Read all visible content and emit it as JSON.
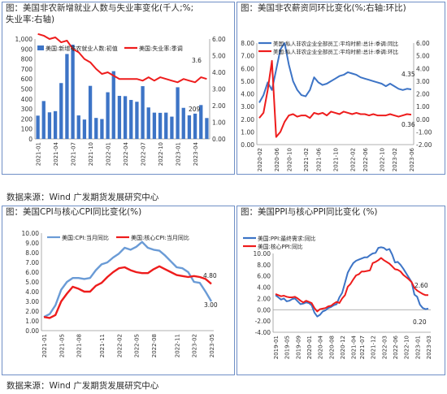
{
  "titles": {
    "p1_line1": "图：美国非农新增就业人数与失业率变化(千人;%;",
    "p1_line2": "失业率:右轴)",
    "p2": "图：美国非农薪资同环比变化(%;右轴:环比)",
    "p3": "图：美国CPI与核心CPI同比变化(%)",
    "p4": "图：美国PPI与核心PPI同比变化 (%)"
  },
  "sources": {
    "top": "数据来源：Wind 广发期货发展研究中心",
    "bottom": "数据来源：Wind 广发期货发展研究中心"
  },
  "colors": {
    "blue": "#3d74c6",
    "red": "#ee1c1c",
    "light_blue": "#6a9bd6"
  },
  "chart_data": [
    {
      "type": "bar",
      "legend_position": "top",
      "series": [
        {
          "name": "美国:新增非农就业人数:初值",
          "type": "bar",
          "values": [
            233,
            379,
            266,
            278,
            559,
            850,
            943,
            235,
            194,
            531,
            210,
            199,
            467,
            678,
            431,
            428,
            390,
            372,
            528,
            315,
            263,
            261,
            263,
            223,
            517,
            311,
            236,
            253,
            339,
            209
          ]
        },
        {
          "name": "美国:失业率:季调",
          "type": "line",
          "axis": "right",
          "values": [
            6.3,
            6.2,
            6.0,
            6.1,
            5.8,
            5.9,
            5.4,
            5.2,
            4.8,
            4.6,
            4.2,
            3.9,
            4.0,
            3.8,
            3.6,
            3.6,
            3.6,
            3.6,
            3.5,
            3.7,
            3.5,
            3.7,
            3.6,
            3.5,
            3.4,
            3.6,
            3.5,
            3.4,
            3.7,
            3.6
          ]
        }
      ],
      "x_ticks": [
        "2021-01",
        "2021-04",
        "2021-07",
        "2021-10",
        "2022-01",
        "2022-04",
        "2022-07",
        "2022-10",
        "2023-01",
        "2023-04"
      ],
      "annotations": [
        "3.6",
        "209"
      ],
      "ylim_left": [
        0,
        1000
      ],
      "yticks_left": [
        "0",
        "100",
        "200",
        "300",
        "400",
        "500",
        "600",
        "700",
        "800",
        "900",
        "1,000"
      ],
      "ylim_right": [
        0,
        6
      ],
      "yticks_right": [
        "0.00",
        "1.00",
        "2.00",
        "3.00",
        "4.00",
        "5.00",
        "6.00"
      ]
    },
    {
      "type": "line",
      "legend_position": "top",
      "series": [
        {
          "name": "美国:私人非农企业全部员工:平均时薪:总计:季调:同比",
          "values": [
            3.3,
            3.9,
            4.9,
            4.3,
            5.9,
            7.5,
            8.0,
            6.3,
            5.0,
            4.3,
            3.9,
            3.8,
            4.3,
            5.3,
            4.9,
            4.7,
            4.8,
            5.0,
            5.2,
            5.4,
            5.5,
            5.7,
            5.6,
            5.5,
            5.3,
            5.2,
            5.1,
            5.0,
            4.9,
            4.8,
            4.6,
            4.8,
            4.6,
            4.4,
            4.3,
            4.4,
            4.35
          ]
        },
        {
          "name": "美国:私人非农企业全部员工:平均时薪:总计:季调:环比",
          "axis": "right",
          "values": [
            0.1,
            0.5,
            2.3,
            4.6,
            -1.4,
            -1.0,
            -0.2,
            0.3,
            0.4,
            0.2,
            0.3,
            0.3,
            0.1,
            0.5,
            0.4,
            0.5,
            0.3,
            0.6,
            0.5,
            0.4,
            0.6,
            0.5,
            0.4,
            0.5,
            0.4,
            0.4,
            0.3,
            0.4,
            0.3,
            0.3,
            0.3,
            0.4,
            0.3,
            0.2,
            0.3,
            0.4,
            0.36
          ]
        }
      ],
      "x_ticks": [
        "2020-02",
        "2020-06",
        "2020-10",
        "2021-02",
        "2021-06",
        "2021-10",
        "2022-02",
        "2022-06",
        "2022-10",
        "2023-02",
        "2023-06"
      ],
      "annotations": [
        "4.35",
        "0.36"
      ],
      "ylim_left": [
        0,
        8
      ],
      "yticks_left": [
        "0.00",
        "1.00",
        "2.00",
        "3.00",
        "4.00",
        "5.00",
        "6.00",
        "7.00",
        "8.00"
      ],
      "ylim_right": [
        -2,
        6
      ],
      "yticks_right": [
        "-2.00",
        "-1.00",
        "0.00",
        "1.00",
        "2.00",
        "3.00",
        "4.00",
        "5.00",
        "6.00"
      ]
    },
    {
      "type": "line",
      "legend_position": "top",
      "series": [
        {
          "name": "美国:CPI:当月同比",
          "values": [
            1.4,
            1.7,
            2.6,
            4.2,
            5.0,
            5.4,
            5.4,
            5.3,
            5.4,
            6.2,
            6.8,
            7.0,
            7.5,
            7.9,
            8.5,
            8.3,
            8.6,
            9.1,
            8.5,
            8.3,
            8.2,
            7.7,
            7.1,
            6.5,
            6.4,
            6.0,
            5.0,
            4.9,
            4.0,
            3.0
          ]
        },
        {
          "name": "美国:核心CPI:当月同比",
          "values": [
            1.4,
            1.3,
            1.6,
            3.0,
            3.8,
            4.5,
            4.3,
            4.0,
            4.0,
            4.6,
            4.9,
            5.5,
            6.0,
            6.4,
            6.5,
            6.2,
            6.0,
            5.9,
            5.9,
            6.3,
            6.6,
            6.3,
            6.0,
            5.7,
            5.6,
            5.5,
            5.6,
            5.5,
            5.3,
            4.8
          ]
        }
      ],
      "x_ticks": [
        "2021-01",
        "2021-05",
        "2021-08",
        "2021-11",
        "2022-02",
        "2022-05",
        "2022-08",
        "2022-11",
        "2023-02",
        "2023-05"
      ],
      "annotations": [
        "4.80",
        "3.00"
      ],
      "ylim": [
        0,
        10
      ],
      "yticks": [
        "0.00",
        "1.00",
        "2.00",
        "3.00",
        "4.00",
        "5.00",
        "6.00",
        "7.00",
        "8.00",
        "9.00",
        "10.00"
      ]
    },
    {
      "type": "line",
      "legend_position": "top",
      "series": [
        {
          "name": "美国:PPI:最终需求:同比",
          "values": [
            2.6,
            2.2,
            1.8,
            2.0,
            1.5,
            1.6,
            1.9,
            2.0,
            1.5,
            1.0,
            1.1,
            1.3,
            1.2,
            0.8,
            -0.5,
            -1.2,
            -0.9,
            -0.3,
            -0.1,
            0.3,
            0.5,
            0.8,
            1.0,
            2.2,
            3.0,
            4.8,
            6.6,
            7.5,
            8.3,
            8.7,
            8.9,
            9.1,
            9.3,
            9.3,
            9.7,
            10.0,
            10.1,
            11.0,
            11.1,
            11.0,
            10.6,
            10.8,
            9.8,
            8.4,
            8.5,
            8.0,
            7.3,
            6.5,
            5.7,
            4.9,
            2.7,
            2.3,
            0.9,
            0.3,
            0.1,
            0.2
          ]
        },
        {
          "name": "美国:核心PPI:同比",
          "values": [
            2.8,
            2.6,
            2.4,
            2.5,
            2.3,
            2.2,
            2.2,
            2.3,
            2.0,
            1.6,
            1.3,
            1.6,
            1.4,
            1.2,
            0.3,
            -0.3,
            0.1,
            0.2,
            0.3,
            0.6,
            0.7,
            1.1,
            1.4,
            1.2,
            2.0,
            2.6,
            4.1,
            4.6,
            5.4,
            6.1,
            6.3,
            6.8,
            6.8,
            6.9,
            7.0,
            8.3,
            8.5,
            8.8,
            9.2,
            8.8,
            8.5,
            8.2,
            7.7,
            7.2,
            7.1,
            6.8,
            6.2,
            5.8,
            5.4,
            4.9,
            3.9,
            3.4,
            3.1,
            2.8,
            2.6,
            2.6
          ]
        }
      ],
      "x_ticks": [
        "2019-01",
        "2019-05",
        "2019-09",
        "2020-01",
        "2020-04",
        "2020-08",
        "2020-12",
        "2021-04",
        "2021-07",
        "2021-12",
        "2022-03",
        "2022-06",
        "2022-10",
        "2023-01",
        "2023-03"
      ],
      "annotations": [
        "2.60",
        "0.20"
      ],
      "ylim": [
        -4,
        10
      ],
      "yticks": [
        "-4.00",
        "-2.00",
        "0.00",
        "2.00",
        "4.00",
        "6.00",
        "8.00",
        "10.00"
      ]
    }
  ]
}
